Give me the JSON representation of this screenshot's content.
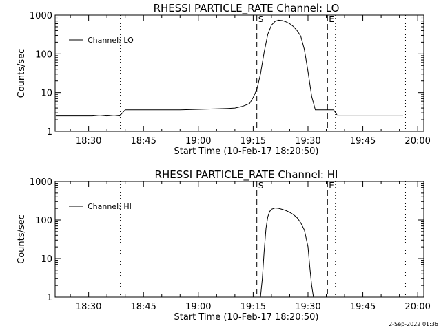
{
  "footer": {
    "timestamp": "2-Sep-2022 01:36"
  },
  "chart_data": [
    {
      "type": "line",
      "title": "RHESSI PARTICLE_RATE Channel: LO",
      "xlabel": "Start Time (10-Feb-17 18:20:50)",
      "ylabel": "Counts/sec",
      "yscale": "log",
      "ylim": [
        1,
        1000
      ],
      "xlim": [
        "18:20:50",
        "20:01:40"
      ],
      "xticks": [
        "18:30",
        "18:45",
        "19:00",
        "19:15",
        "19:30",
        "19:45",
        "20:00"
      ],
      "yticks": [
        "1",
        "10",
        "100",
        "1000"
      ],
      "legend": "top-left",
      "series": [
        {
          "name": "Channel: LO",
          "x": [
            "18:21",
            "18:23",
            "18:25",
            "18:27",
            "18:29",
            "18:31",
            "18:33",
            "18:35",
            "18:37",
            "18:38:30",
            "18:40",
            "18:45",
            "18:50",
            "18:55",
            "19:00",
            "19:05",
            "19:08",
            "19:10",
            "19:12",
            "19:14",
            "19:15",
            "19:16",
            "19:17",
            "19:18",
            "19:19",
            "19:20",
            "19:21",
            "19:22",
            "19:23",
            "19:24",
            "19:25",
            "19:26",
            "19:27",
            "19:28",
            "19:29",
            "19:30",
            "19:31",
            "19:32",
            "19:33",
            "19:35",
            "19:36",
            "19:37",
            "19:38",
            "19:40",
            "19:42",
            "19:45",
            "19:48",
            "19:51",
            "19:54",
            "19:56"
          ],
          "y": [
            2.5,
            2.5,
            2.5,
            2.5,
            2.5,
            2.5,
            2.6,
            2.5,
            2.6,
            2.5,
            3.6,
            3.6,
            3.6,
            3.6,
            3.7,
            3.8,
            3.9,
            4.0,
            4.4,
            5.2,
            7.5,
            12,
            30,
            110,
            320,
            550,
            690,
            740,
            720,
            670,
            600,
            510,
            400,
            290,
            130,
            35,
            8,
            3.6,
            3.6,
            3.6,
            3.6,
            3.6,
            2.6,
            2.6,
            2.6,
            2.6,
            2.6,
            2.6,
            2.6,
            2.6
          ]
        }
      ],
      "vlines": [
        {
          "label": "S",
          "x": "19:16:00",
          "style": "dashed"
        },
        {
          "label": "E",
          "x": "19:35:20",
          "style": "dashed"
        },
        {
          "label": "",
          "x": "18:38:40",
          "style": "dotted"
        },
        {
          "label": "",
          "x": "19:37:30",
          "style": "dotted"
        },
        {
          "label": "",
          "x": "19:56:40",
          "style": "dotted"
        }
      ]
    },
    {
      "type": "line",
      "title": "RHESSI PARTICLE_RATE Channel: HI",
      "xlabel": "Start Time (10-Feb-17 18:20:50)",
      "ylabel": "Counts/sec",
      "yscale": "log",
      "ylim": [
        1,
        1000
      ],
      "xlim": [
        "18:20:50",
        "20:01:40"
      ],
      "xticks": [
        "18:30",
        "18:45",
        "19:00",
        "19:15",
        "19:30",
        "19:45",
        "20:00"
      ],
      "yticks": [
        "1",
        "10",
        "100",
        "1000"
      ],
      "legend": "top-left",
      "series": [
        {
          "name": "Channel: HI",
          "x": [
            "19:17:00",
            "19:17:30",
            "19:18",
            "19:18:30",
            "19:19",
            "19:19:30",
            "19:20",
            "19:21",
            "19:22",
            "19:23",
            "19:24",
            "19:25",
            "19:26",
            "19:27",
            "19:28",
            "19:29",
            "19:30",
            "19:30:30",
            "19:31",
            "19:31:30"
          ],
          "y": [
            1,
            3,
            15,
            60,
            120,
            165,
            190,
            205,
            200,
            188,
            175,
            158,
            138,
            115,
            85,
            55,
            20,
            6,
            2,
            1
          ]
        }
      ],
      "vlines": [
        {
          "label": "S",
          "x": "19:16:00",
          "style": "dashed"
        },
        {
          "label": "E",
          "x": "19:35:20",
          "style": "dashed"
        },
        {
          "label": "",
          "x": "18:38:40",
          "style": "dotted"
        },
        {
          "label": "",
          "x": "19:37:30",
          "style": "dotted"
        },
        {
          "label": "",
          "x": "19:56:40",
          "style": "dotted"
        }
      ]
    }
  ]
}
